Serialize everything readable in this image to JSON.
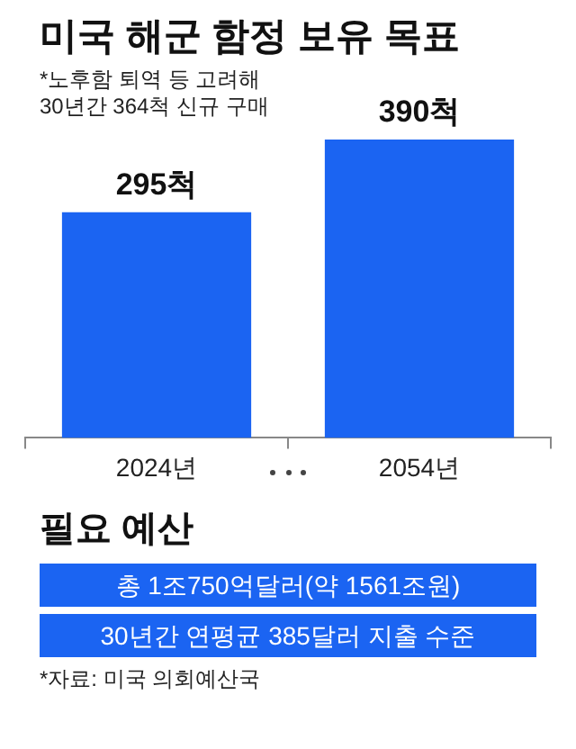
{
  "chart_data": {
    "type": "bar",
    "title": "미국 해군 함정 보유 목표",
    "subtitle": "*노후함 퇴역 등 고려해\n30년간 364척 신규 구매",
    "categories": [
      "2024년",
      "2054년"
    ],
    "values": [
      295,
      390
    ],
    "color": "#1b64f2",
    "value_labels": [
      "295척",
      "390척"
    ],
    "annotations": [
      "필요 예산",
      "총 1조750억달러(약 1561조원)",
      "30년간 연평균 385달러 지출 수준",
      "*자료: 미국 의회예산국"
    ],
    "legend": false
  }
}
